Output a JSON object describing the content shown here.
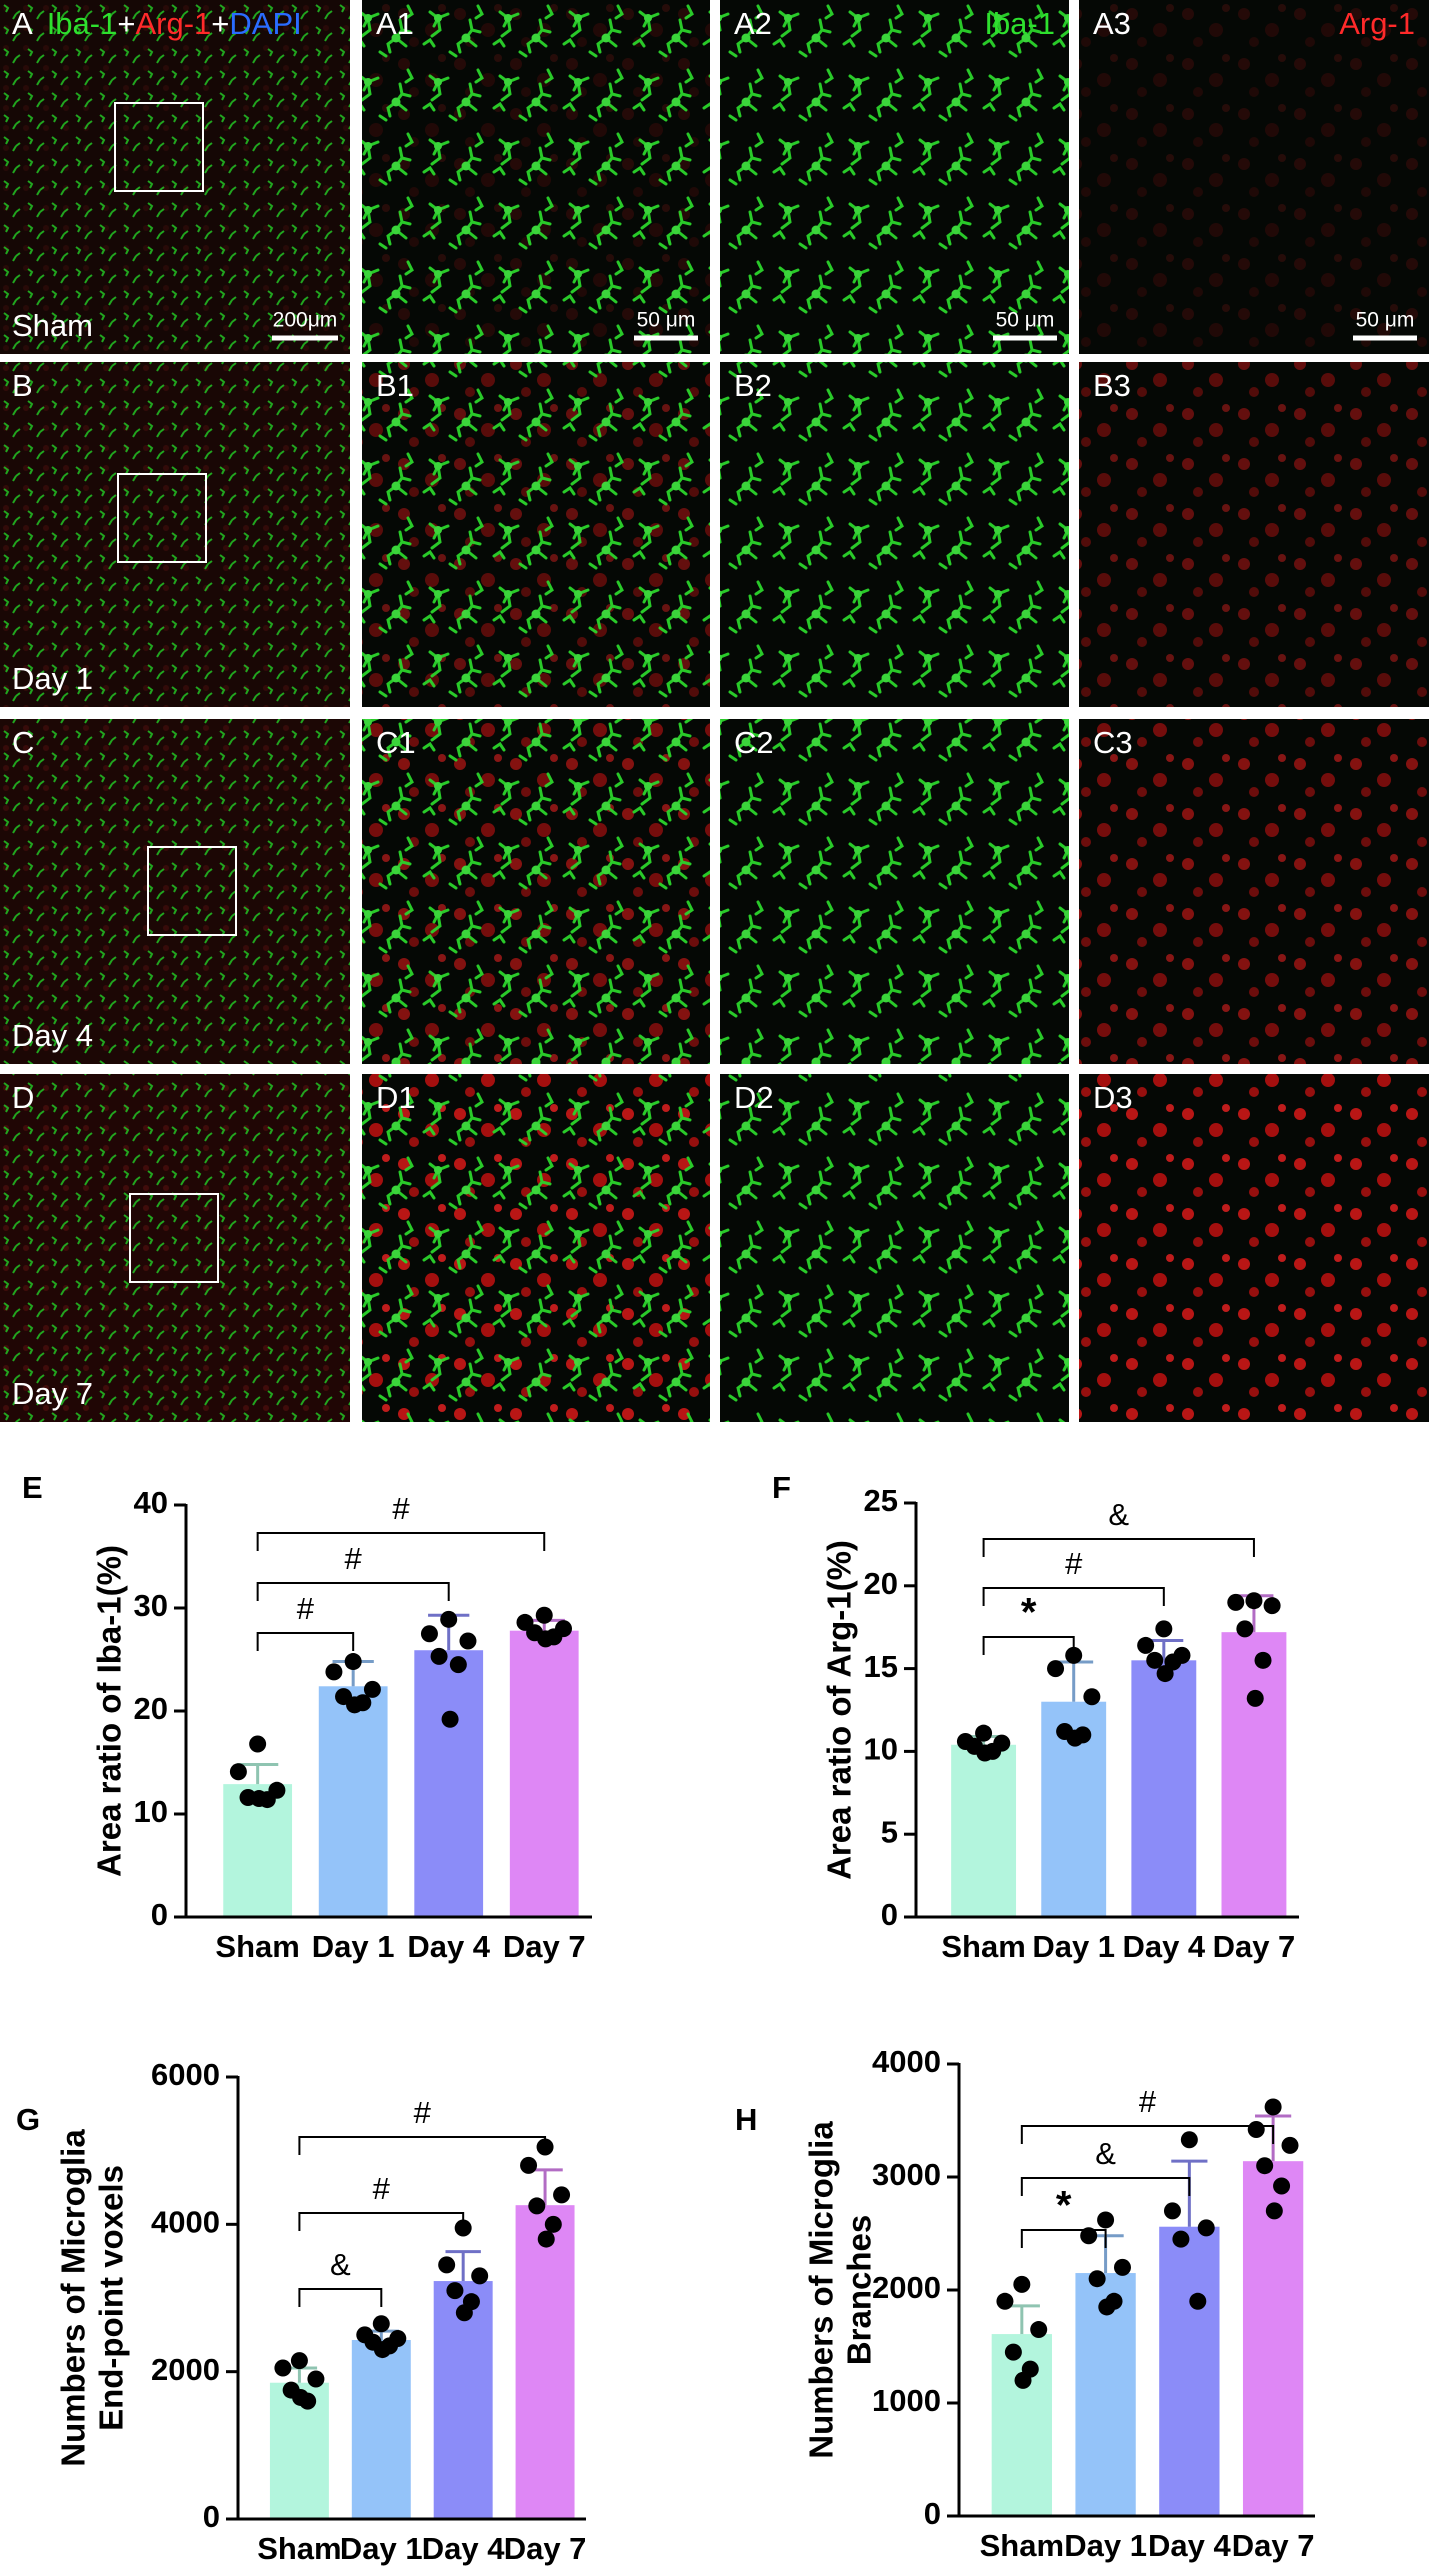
{
  "micrographs": {
    "channels": [
      "Iba-1",
      "+",
      "Arg-1",
      "+",
      "DAPI"
    ],
    "channel_titles": [
      "Iba-1",
      "Arg-1"
    ],
    "scale_bars": [
      "200μm",
      "50 μm",
      "50 μm",
      "50 μm"
    ],
    "rows": [
      {
        "labels": [
          "A",
          "A1",
          "A2",
          "A3"
        ],
        "group": "Sham"
      },
      {
        "labels": [
          "B",
          "B1",
          "B2",
          "B3"
        ],
        "group": "Day 1"
      },
      {
        "labels": [
          "C",
          "C1",
          "C2",
          "C3"
        ],
        "group": "Day 4"
      },
      {
        "labels": [
          "D",
          "D1",
          "D2",
          "D3"
        ],
        "group": "Day 7"
      }
    ]
  },
  "chart_data": [
    {
      "type": "bar",
      "panel": "E",
      "ylabel": [
        "Area ratio of Iba-1(%)"
      ],
      "categories": [
        "Sham",
        "Day 1",
        "Day 4",
        "Day 7"
      ],
      "values": [
        12.9,
        22.4,
        25.9,
        27.8
      ],
      "errors": [
        1.9,
        2.4,
        3.4,
        1.0
      ],
      "points": [
        [
          16.8,
          14.1,
          12.3,
          11.6,
          11.4,
          11.5
        ],
        [
          24.8,
          23.8,
          22.1,
          21.4,
          20.8,
          20.6
        ],
        [
          28.9,
          27.5,
          26.8,
          25.3,
          24.5,
          19.2
        ],
        [
          29.3,
          28.6,
          28.0,
          27.6,
          27.2,
          27.0
        ]
      ],
      "colors": [
        "#b3f5dd",
        "#94c3f9",
        "#8b8cf8",
        "#de87f5"
      ],
      "ylim": [
        0,
        40
      ],
      "yticks": [
        0,
        10,
        20,
        30,
        40
      ],
      "annotations": [
        {
          "from": 0,
          "to": 1,
          "label": "#"
        },
        {
          "from": 0,
          "to": 2,
          "label": "#"
        },
        {
          "from": 0,
          "to": 3,
          "label": "#"
        }
      ]
    },
    {
      "type": "bar",
      "panel": "F",
      "ylabel": [
        "Area ratio of Arg-1(%)"
      ],
      "categories": [
        "Sham",
        "Day 1",
        "Day 4",
        "Day 7"
      ],
      "values": [
        10.4,
        13.0,
        15.5,
        17.2
      ],
      "errors": [
        0.5,
        2.4,
        1.2,
        2.2
      ],
      "points": [
        [
          11.1,
          10.6,
          10.5,
          10.3,
          10.0,
          9.9
        ],
        [
          15.8,
          15.0,
          13.3,
          11.2,
          11.0,
          10.8
        ],
        [
          17.4,
          16.4,
          15.8,
          15.5,
          15.4,
          14.7
        ],
        [
          19.1,
          19.0,
          18.8,
          17.4,
          15.5,
          13.2
        ]
      ],
      "colors": [
        "#b3f5dd",
        "#94c3f9",
        "#8b8cf8",
        "#de87f5"
      ],
      "ylim": [
        0,
        25
      ],
      "yticks": [
        0,
        5,
        10,
        15,
        20,
        25
      ],
      "annotations": [
        {
          "from": 0,
          "to": 1,
          "label": "*"
        },
        {
          "from": 0,
          "to": 2,
          "label": "#"
        },
        {
          "from": 0,
          "to": 3,
          "label": "&"
        }
      ]
    },
    {
      "type": "bar",
      "panel": "G",
      "ylabel": [
        "Numbers of Microglia",
        "End-point voxels"
      ],
      "categories": [
        "Sham",
        "Day 1",
        "Day 4",
        "Day 7"
      ],
      "values": [
        1850,
        2430,
        3230,
        4260
      ],
      "errors": [
        200,
        120,
        400,
        480
      ],
      "points": [
        [
          2150,
          2050,
          1900,
          1750,
          1600,
          1650
        ],
        [
          2650,
          2500,
          2450,
          2400,
          2350,
          2300
        ],
        [
          3950,
          3450,
          3300,
          3100,
          2950,
          2800
        ],
        [
          5050,
          4800,
          4400,
          4250,
          4000,
          3800
        ]
      ],
      "colors": [
        "#b3f5dd",
        "#94c3f9",
        "#8b8cf8",
        "#de87f5"
      ],
      "ylim": [
        0,
        6000
      ],
      "yticks": [
        0,
        2000,
        4000,
        6000
      ],
      "annotations": [
        {
          "from": 0,
          "to": 1,
          "label": "&"
        },
        {
          "from": 0,
          "to": 2,
          "label": "#"
        },
        {
          "from": 0,
          "to": 3,
          "label": "#"
        }
      ]
    },
    {
      "type": "bar",
      "panel": "H",
      "ylabel": [
        "Numbers of Microglia",
        "Branches"
      ],
      "categories": [
        "Sham",
        "Day 1",
        "Day 4",
        "Day 7"
      ],
      "values": [
        1610,
        2150,
        2560,
        3140
      ],
      "errors": [
        250,
        330,
        580,
        400
      ],
      "points": [
        [
          2050,
          1900,
          1650,
          1450,
          1300,
          1200
        ],
        [
          2620,
          2480,
          2200,
          2100,
          1900,
          1850
        ],
        [
          3330,
          2700,
          2550,
          2450,
          1900
        ],
        [
          3620,
          3420,
          3280,
          3100,
          2920,
          2700
        ]
      ],
      "colors": [
        "#b3f5dd",
        "#94c3f9",
        "#8b8cf8",
        "#de87f5"
      ],
      "ylim": [
        0,
        4000
      ],
      "yticks": [
        0,
        1000,
        2000,
        3000,
        4000
      ],
      "annotations": [
        {
          "from": 0,
          "to": 1,
          "label": "*"
        },
        {
          "from": 0,
          "to": 2,
          "label": "&"
        },
        {
          "from": 0,
          "to": 3,
          "label": "#"
        }
      ]
    }
  ]
}
